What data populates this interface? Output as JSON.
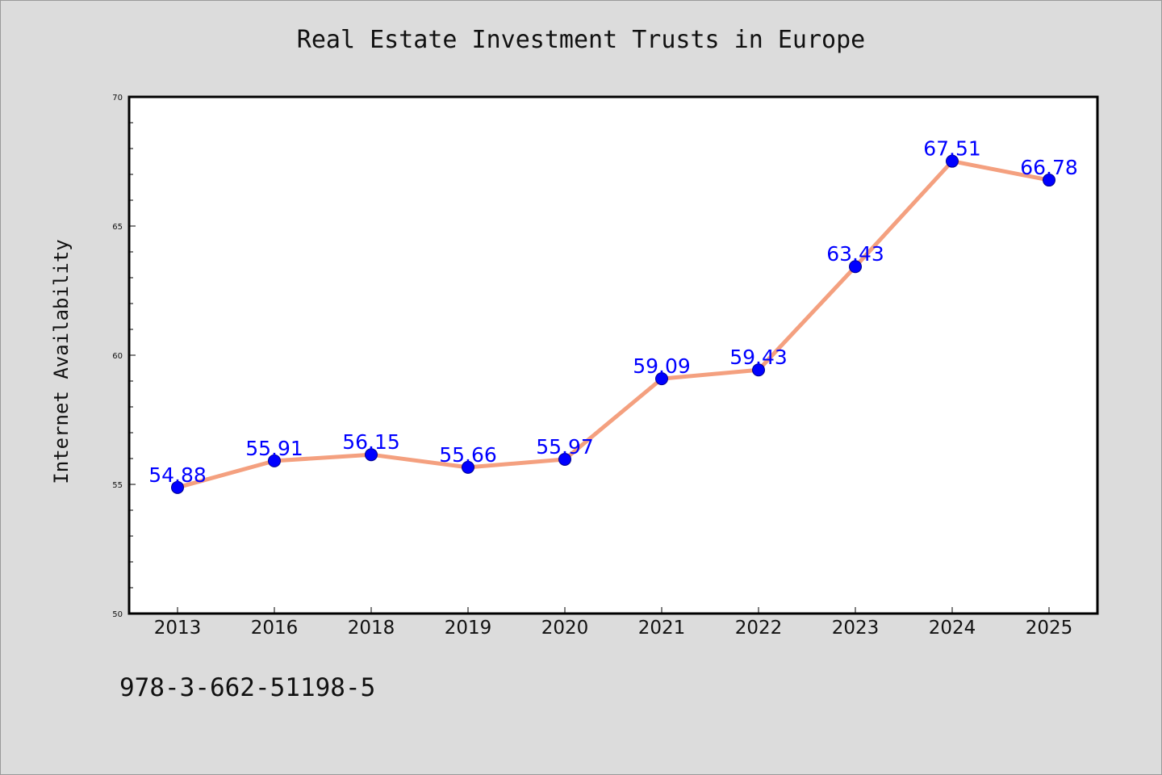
{
  "chart_data": {
    "type": "line",
    "title": "Real Estate Investment Trusts in Europe",
    "xlabel": "",
    "ylabel": "Internet Availability",
    "categories": [
      "2013",
      "2016",
      "2018",
      "2019",
      "2020",
      "2021",
      "2022",
      "2023",
      "2024",
      "2025"
    ],
    "values": [
      54.88,
      55.91,
      56.15,
      55.66,
      55.97,
      59.09,
      59.43,
      63.43,
      67.51,
      66.78
    ],
    "data_labels": [
      "54.88",
      "55.91",
      "56.15",
      "55.66",
      "55.97",
      "59.09",
      "59.43",
      "63.43",
      "67.51",
      "66.78"
    ],
    "ylim": [
      50,
      70
    ],
    "yticks": [
      "50",
      "55",
      "60",
      "65",
      "70"
    ],
    "line_color": "#f4a07f",
    "marker_color": "#0000ff",
    "label_color": "#0000ff",
    "grid": false,
    "legend": "none"
  },
  "footer": {
    "code": "978-3-662-51198-5"
  },
  "colors": {
    "background": "#dcdcdc",
    "plot_background": "#ffffff"
  }
}
